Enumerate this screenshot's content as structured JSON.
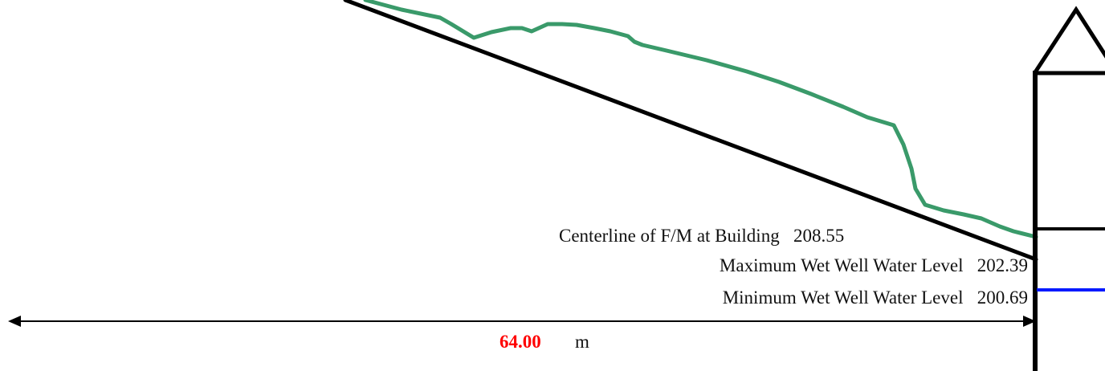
{
  "profile": {
    "centerline_label": "Centerline of F/M at Building",
    "centerline_value": "208.55",
    "max_level_label": "Maximum Wet Well Water Level",
    "max_level_value": "202.39",
    "min_level_label": "Minimum Wet Well Water Level",
    "min_level_value": "200.69"
  },
  "dimension": {
    "value": "64.00",
    "unit": "m"
  },
  "colors": {
    "ground_line": "#3a9a6a",
    "forcemain_line": "#000000",
    "water_level_line": "#0019ff",
    "dimension_value": "#ff0000",
    "building_outline": "#000000"
  }
}
